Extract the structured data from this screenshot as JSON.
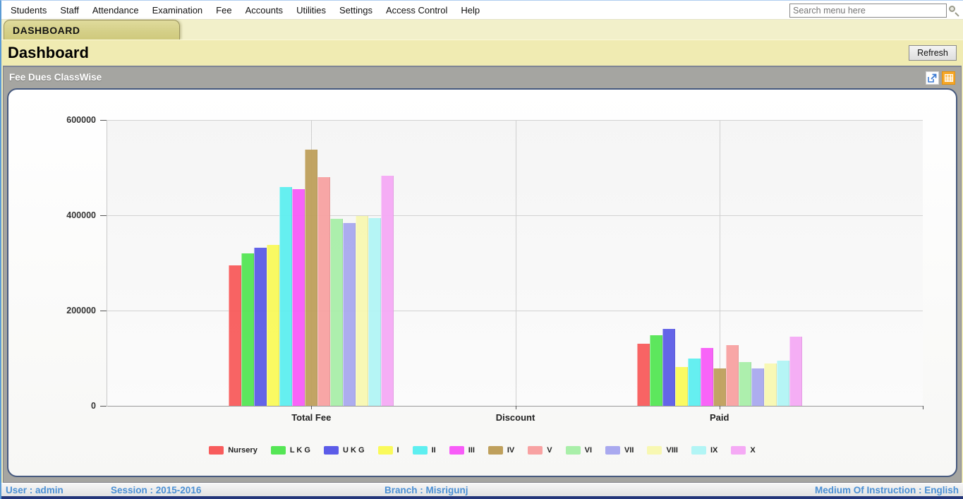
{
  "menu": {
    "items": [
      "Students",
      "Staff",
      "Attendance",
      "Examination",
      "Fee",
      "Accounts",
      "Utilities",
      "Settings",
      "Access Control",
      "Help"
    ]
  },
  "search": {
    "placeholder": "Search menu here"
  },
  "tab": {
    "label": "DASHBOARD"
  },
  "header": {
    "title": "Dashboard",
    "refresh_label": "Refresh"
  },
  "panel": {
    "title": "Fee Dues ClassWise"
  },
  "chart_data": {
    "type": "bar",
    "title": "Fee Dues ClassWise",
    "categories": [
      "Total Fee",
      "Discount",
      "Paid"
    ],
    "series": [
      {
        "name": "Nursery",
        "color": "#f85c5c",
        "values": [
          295000,
          0,
          130000
        ]
      },
      {
        "name": "L K G",
        "color": "#55e655",
        "values": [
          320000,
          0,
          148000
        ]
      },
      {
        "name": "U K G",
        "color": "#5c5ce8",
        "values": [
          332000,
          0,
          161000
        ]
      },
      {
        "name": "I",
        "color": "#fafa5a",
        "values": [
          338000,
          0,
          81000
        ]
      },
      {
        "name": "II",
        "color": "#5eeff0",
        "values": [
          460000,
          0,
          99000
        ]
      },
      {
        "name": "III",
        "color": "#f85cf8",
        "values": [
          455000,
          0,
          121000
        ]
      },
      {
        "name": "IV",
        "color": "#bfa05c",
        "values": [
          538000,
          0,
          78000
        ]
      },
      {
        "name": "V",
        "color": "#f8a2a2",
        "values": [
          480000,
          0,
          128000
        ]
      },
      {
        "name": "VI",
        "color": "#a9efa9",
        "values": [
          392000,
          0,
          92000
        ]
      },
      {
        "name": "VII",
        "color": "#a9a9ef",
        "values": [
          383000,
          0,
          78000
        ]
      },
      {
        "name": "VIII",
        "color": "#f8f8b2",
        "values": [
          398000,
          0,
          89000
        ]
      },
      {
        "name": "IX",
        "color": "#b2f5f5",
        "values": [
          394000,
          0,
          95000
        ]
      },
      {
        "name": "X",
        "color": "#f5aaf5",
        "values": [
          483000,
          0,
          145000
        ]
      }
    ],
    "ylim": [
      0,
      600000
    ],
    "yticks": [
      0,
      200000,
      400000,
      600000
    ],
    "grid": true,
    "legend_position": "bottom"
  },
  "statusbar": {
    "user": "User : admin",
    "session": "Session : 2015-2016",
    "branch": "Branch : Misrigunj",
    "medium": "Medium Of Instruction : English"
  }
}
